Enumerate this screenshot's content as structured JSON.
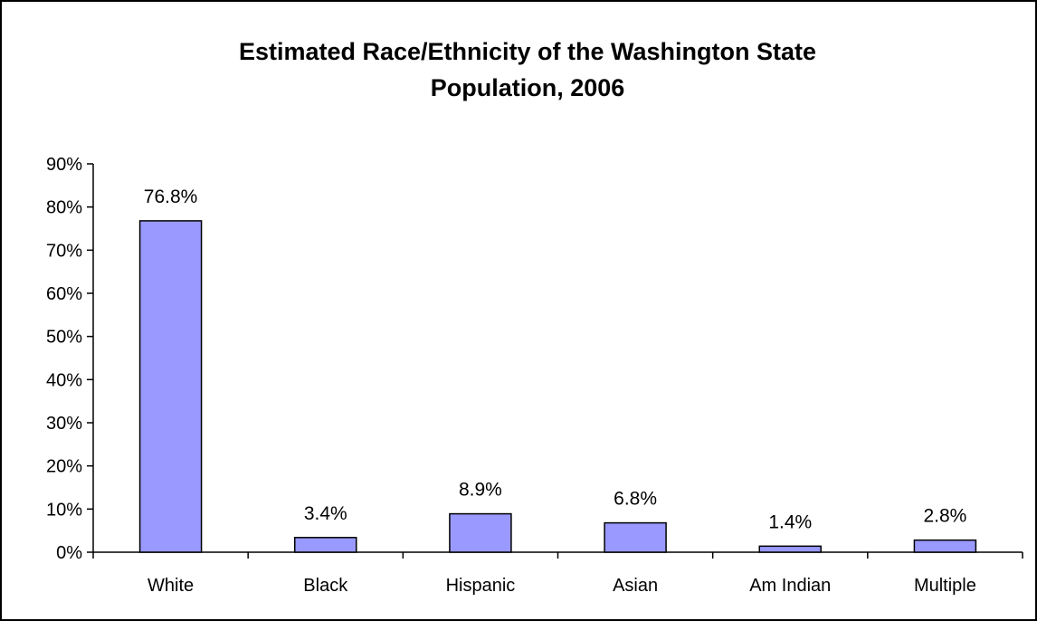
{
  "chart_data": {
    "type": "bar",
    "title_lines": [
      "Estimated Race/Ethnicity of the Washington State",
      "Population, 2006"
    ],
    "categories": [
      "White",
      "Black",
      "Hispanic",
      "Asian",
      "Am Indian",
      "Multiple"
    ],
    "values": [
      76.8,
      3.4,
      8.9,
      6.8,
      1.4,
      2.8
    ],
    "data_labels": [
      "76.8%",
      "3.4%",
      "8.9%",
      "6.8%",
      "1.4%",
      "2.8%"
    ],
    "y_ticks": [
      "0%",
      "10%",
      "20%",
      "30%",
      "40%",
      "50%",
      "60%",
      "70%",
      "80%",
      "90%"
    ],
    "ylim": [
      0,
      90
    ],
    "grid": false,
    "legend": "none",
    "bar_color": "#9999ff",
    "bar_stroke": "#000000"
  }
}
